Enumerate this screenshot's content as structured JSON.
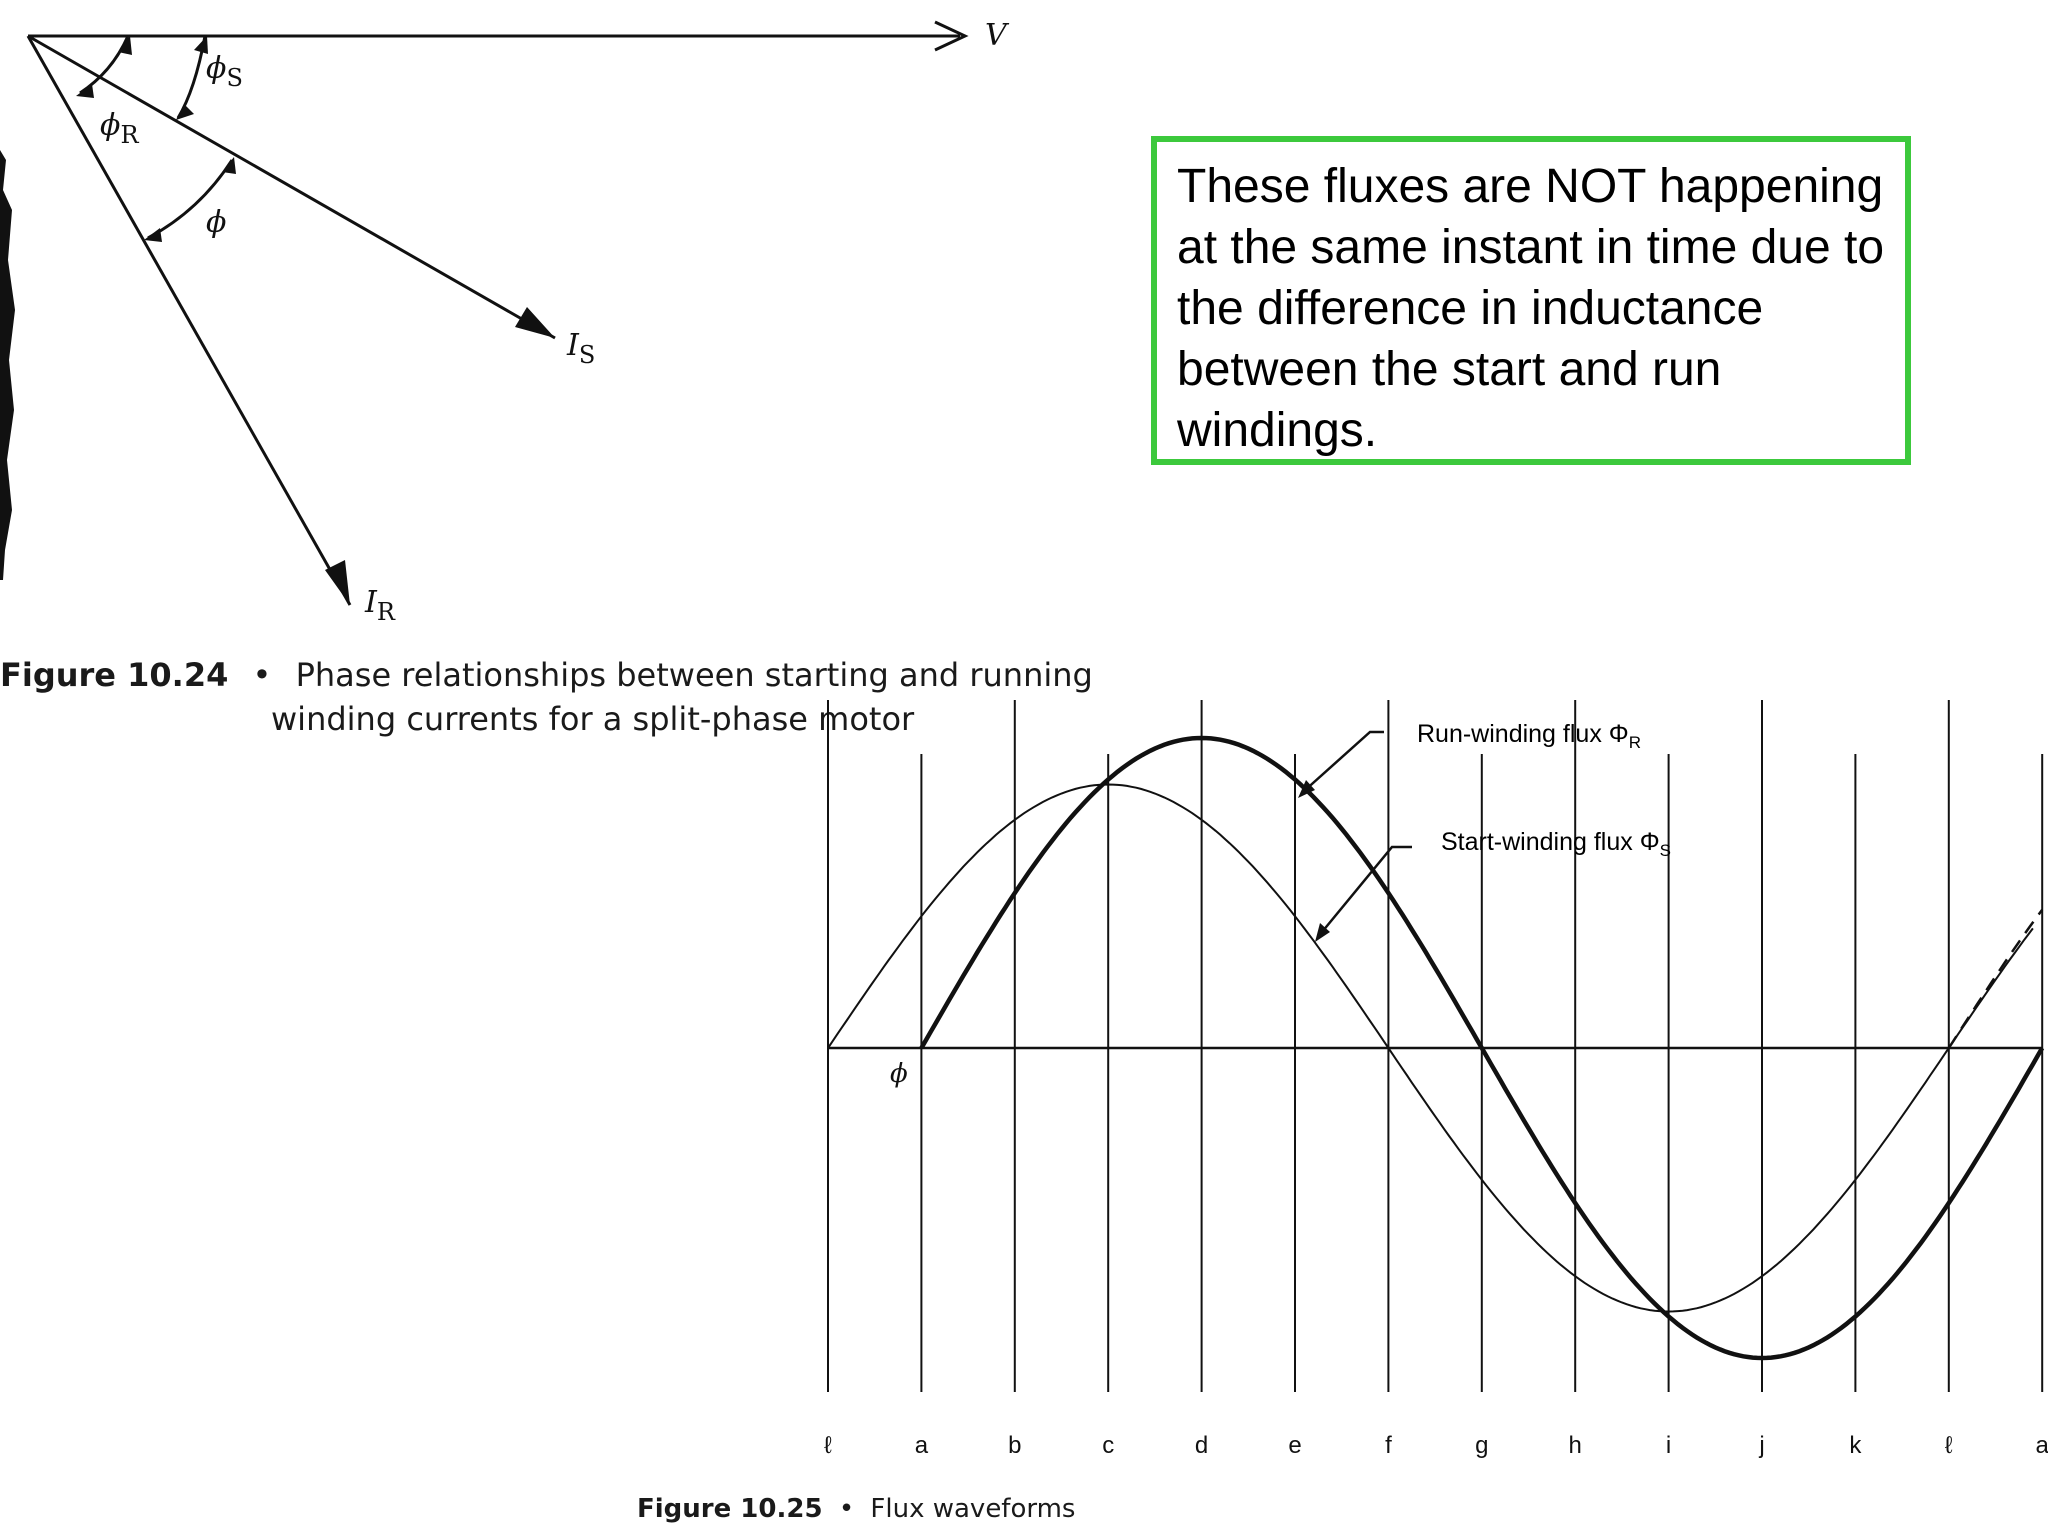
{
  "callout": {
    "text": "These fluxes are NOT happening at the same instant in time due to the difference in inductance between the start and run windings."
  },
  "figure_24": {
    "number": "Figure 10.24",
    "bullet": "•",
    "caption_line1": "Phase relationships between starting and running",
    "caption_line2": "winding currents for a split-phase motor",
    "phasors": {
      "v": "V",
      "is": "I",
      "is_sub": "S",
      "ir": "I",
      "ir_sub": "R",
      "phi_s": "ϕ",
      "phi_s_sub": "S",
      "phi_r": "ϕ",
      "phi_r_sub": "R",
      "phi": "ϕ"
    }
  },
  "figure_25": {
    "number": "Figure 10.25",
    "bullet": "•",
    "caption": "Flux waveforms",
    "run_label": "Run-winding flux Φ",
    "run_sub": "R",
    "start_label": "Start-winding flux Φ",
    "start_sub": "S",
    "phase_label": "ϕ",
    "ticks": [
      "ℓ",
      "a",
      "b",
      "c",
      "d",
      "e",
      "f",
      "g",
      "h",
      "i",
      "j",
      "k",
      "ℓ",
      "a"
    ]
  },
  "chart_data": {
    "type": "line",
    "title": "Flux waveforms",
    "xlabel": "",
    "ylabel": "",
    "categories": [
      "ℓ",
      "a",
      "b",
      "c",
      "d",
      "e",
      "f",
      "g",
      "h",
      "i",
      "j",
      "k",
      "ℓ",
      "a"
    ],
    "series": [
      {
        "name": "Start-winding flux Φs",
        "shape": "sine",
        "starts_at": "ℓ",
        "peak_at": "c",
        "zero_at": "f",
        "trough_at": "i",
        "relative_amplitude": 0.85,
        "line": "thin"
      },
      {
        "name": "Run-winding flux ΦR",
        "shape": "sine",
        "starts_at": "a",
        "peak_at": "d",
        "zero_at": "g",
        "trough_at": "j",
        "relative_amplitude": 1.0,
        "line": "thick",
        "continuation": "dashed after ℓ"
      }
    ],
    "phase_shift_label": "ϕ",
    "grid": "vertical lines at each tick"
  }
}
